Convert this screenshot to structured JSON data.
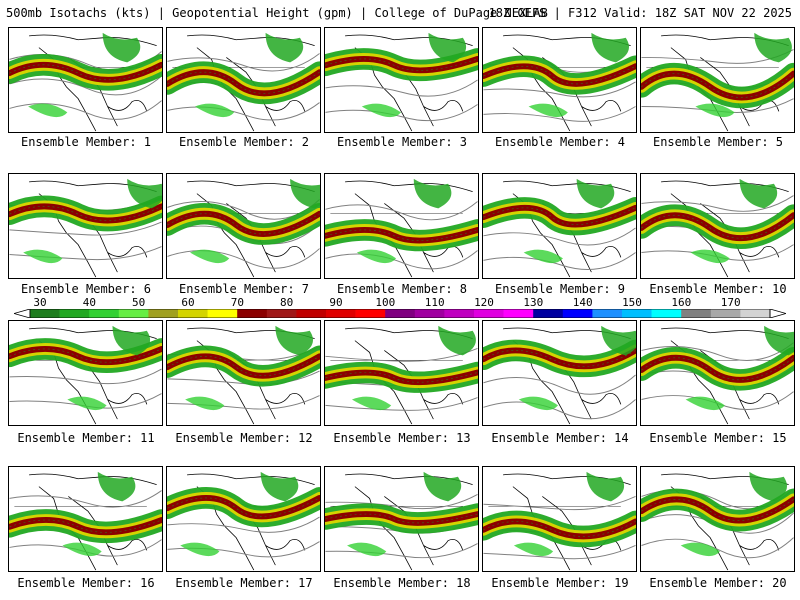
{
  "header": {
    "title_left": "500mb Isotachs (kts) | Geopotential Height (gpm) | College of DuPage NEXLAB",
    "title_right": "18Z GEFS | F312 Valid: 18Z SAT NOV 22 2025"
  },
  "members": [
    {
      "caption": "Ensemble Member: 1"
    },
    {
      "caption": "Ensemble Member: 2"
    },
    {
      "caption": "Ensemble Member: 3"
    },
    {
      "caption": "Ensemble Member: 4"
    },
    {
      "caption": "Ensemble Member: 5"
    },
    {
      "caption": "Ensemble Member: 6"
    },
    {
      "caption": "Ensemble Member: 7"
    },
    {
      "caption": "Ensemble Member: 8"
    },
    {
      "caption": "Ensemble Member: 9"
    },
    {
      "caption": "Ensemble Member: 10"
    },
    {
      "caption": "Ensemble Member: 11"
    },
    {
      "caption": "Ensemble Member: 12"
    },
    {
      "caption": "Ensemble Member: 13"
    },
    {
      "caption": "Ensemble Member: 14"
    },
    {
      "caption": "Ensemble Member: 15"
    },
    {
      "caption": "Ensemble Member: 16"
    },
    {
      "caption": "Ensemble Member: 17"
    },
    {
      "caption": "Ensemble Member: 18"
    },
    {
      "caption": "Ensemble Member: 19"
    },
    {
      "caption": "Ensemble Member: 20"
    }
  ],
  "colorbar": {
    "labels": [
      "30",
      "40",
      "50",
      "60",
      "70",
      "80",
      "90",
      "100",
      "110",
      "120",
      "130",
      "140",
      "150",
      "160",
      "170"
    ],
    "colors": [
      "#1e7d1e",
      "#22a822",
      "#33d133",
      "#66ee44",
      "#a0a020",
      "#d4d400",
      "#ffff00",
      "#8b0000",
      "#a01818",
      "#c00000",
      "#e00000",
      "#ff0000",
      "#800080",
      "#a000a0",
      "#c000c0",
      "#e000e0",
      "#ff00ff",
      "#0000a0",
      "#0000ff",
      "#1e90ff",
      "#00bfff",
      "#00ffff",
      "#808080",
      "#a8a8a8",
      "#d3d3d3"
    ]
  }
}
